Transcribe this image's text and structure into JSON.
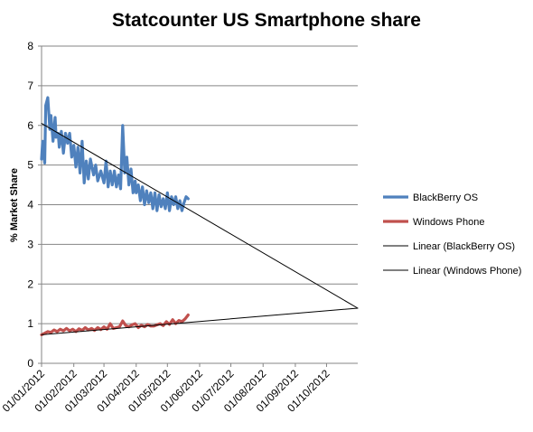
{
  "chart_data": {
    "type": "line",
    "title": "Statcounter US Smartphone share",
    "xlabel": "",
    "ylabel": "% Market Share",
    "ylim": [
      0,
      8
    ],
    "yticks": [
      0,
      1,
      2,
      3,
      4,
      5,
      6,
      7,
      8
    ],
    "xlim": [
      "2012-01-01",
      "2012-10-31"
    ],
    "xticks": [
      "01/01/2012",
      "01/02/2012",
      "01/03/2012",
      "01/04/2012",
      "01/05/2012",
      "01/06/2012",
      "01/07/2012",
      "01/08/2012",
      "01/09/2012",
      "01/10/2012"
    ],
    "tick_dates": [
      "2012-01-01",
      "2012-02-01",
      "2012-03-01",
      "2012-04-01",
      "2012-05-01",
      "2012-06-01",
      "2012-07-01",
      "2012-08-01",
      "2012-09-01",
      "2012-10-01"
    ],
    "grid": "horizontal",
    "legend_position": "right",
    "series": [
      {
        "name": "BlackBerry OS",
        "color": "#4f81bd",
        "x": [
          "2012-01-01",
          "2012-01-02",
          "2012-01-04",
          "2012-01-05",
          "2012-01-07",
          "2012-01-09",
          "2012-01-10",
          "2012-01-12",
          "2012-01-14",
          "2012-01-15",
          "2012-01-17",
          "2012-01-18",
          "2012-01-20",
          "2012-01-22",
          "2012-01-24",
          "2012-01-26",
          "2012-01-28",
          "2012-01-30",
          "2012-02-01",
          "2012-02-03",
          "2012-02-05",
          "2012-02-07",
          "2012-02-09",
          "2012-02-11",
          "2012-02-13",
          "2012-02-15",
          "2012-02-17",
          "2012-02-20",
          "2012-02-22",
          "2012-02-24",
          "2012-02-27",
          "2012-03-01",
          "2012-03-03",
          "2012-03-05",
          "2012-03-07",
          "2012-03-09",
          "2012-03-11",
          "2012-03-13",
          "2012-03-15",
          "2012-03-17",
          "2012-03-19",
          "2012-03-21",
          "2012-03-23",
          "2012-03-25",
          "2012-03-27",
          "2012-03-29",
          "2012-03-31",
          "2012-04-01",
          "2012-04-03",
          "2012-04-05",
          "2012-04-07",
          "2012-04-09",
          "2012-04-11",
          "2012-04-13",
          "2012-04-15",
          "2012-04-17",
          "2012-04-19",
          "2012-04-21",
          "2012-04-23",
          "2012-04-25",
          "2012-04-27",
          "2012-04-29",
          "2012-05-01",
          "2012-05-03",
          "2012-05-05",
          "2012-05-07",
          "2012-05-09",
          "2012-05-11",
          "2012-05-13",
          "2012-05-15",
          "2012-05-17",
          "2012-05-19",
          "2012-05-21"
        ],
        "values": [
          5.15,
          5.6,
          5.05,
          6.5,
          6.7,
          5.9,
          6.25,
          5.6,
          6.2,
          5.7,
          5.8,
          5.45,
          5.85,
          5.3,
          5.8,
          5.55,
          5.8,
          5.2,
          5.5,
          4.95,
          5.45,
          4.8,
          5.6,
          4.55,
          5.1,
          4.65,
          5.15,
          4.75,
          5.0,
          4.6,
          4.85,
          4.55,
          5.1,
          4.45,
          4.85,
          4.5,
          4.85,
          4.45,
          4.75,
          4.4,
          6.0,
          4.8,
          5.2,
          4.5,
          4.9,
          4.3,
          4.6,
          4.3,
          4.5,
          4.1,
          4.45,
          4.0,
          4.35,
          4.05,
          4.3,
          3.9,
          4.3,
          3.85,
          4.25,
          3.95,
          4.15,
          3.9,
          4.3,
          3.85,
          4.2,
          4.0,
          4.2,
          3.9,
          4.1,
          3.85,
          4.05,
          4.2,
          4.15
        ]
      },
      {
        "name": "Windows Phone",
        "color": "#c0504d",
        "x": [
          "2012-01-01",
          "2012-01-04",
          "2012-01-07",
          "2012-01-10",
          "2012-01-13",
          "2012-01-16",
          "2012-01-19",
          "2012-01-22",
          "2012-01-25",
          "2012-01-28",
          "2012-01-31",
          "2012-02-03",
          "2012-02-06",
          "2012-02-09",
          "2012-02-12",
          "2012-02-15",
          "2012-02-18",
          "2012-02-21",
          "2012-02-24",
          "2012-02-27",
          "2012-03-01",
          "2012-03-04",
          "2012-03-07",
          "2012-03-10",
          "2012-03-13",
          "2012-03-16",
          "2012-03-19",
          "2012-03-22",
          "2012-03-25",
          "2012-03-28",
          "2012-03-31",
          "2012-04-03",
          "2012-04-06",
          "2012-04-09",
          "2012-04-12",
          "2012-04-15",
          "2012-04-18",
          "2012-04-21",
          "2012-04-24",
          "2012-04-27",
          "2012-04-30",
          "2012-05-03",
          "2012-05-06",
          "2012-05-09",
          "2012-05-12",
          "2012-05-15",
          "2012-05-18",
          "2012-05-21"
        ],
        "values": [
          0.72,
          0.76,
          0.8,
          0.78,
          0.84,
          0.8,
          0.86,
          0.82,
          0.88,
          0.82,
          0.86,
          0.8,
          0.87,
          0.83,
          0.9,
          0.84,
          0.88,
          0.83,
          0.9,
          0.85,
          0.92,
          0.86,
          1.0,
          0.88,
          0.9,
          0.92,
          1.07,
          0.95,
          0.92,
          0.97,
          1.0,
          0.9,
          0.96,
          0.92,
          0.98,
          0.94,
          0.94,
          0.97,
          1.0,
          0.95,
          1.05,
          0.98,
          1.1,
          1.0,
          1.08,
          1.05,
          1.12,
          1.22
        ]
      },
      {
        "name": "Linear (BlackBerry OS)",
        "color": "#000000",
        "x": [
          "2012-01-01",
          "2012-10-31"
        ],
        "values": [
          6.05,
          1.39
        ]
      },
      {
        "name": "Linear (Windows Phone)",
        "color": "#000000",
        "x": [
          "2012-01-01",
          "2012-10-31"
        ],
        "values": [
          0.72,
          1.39
        ]
      }
    ]
  }
}
